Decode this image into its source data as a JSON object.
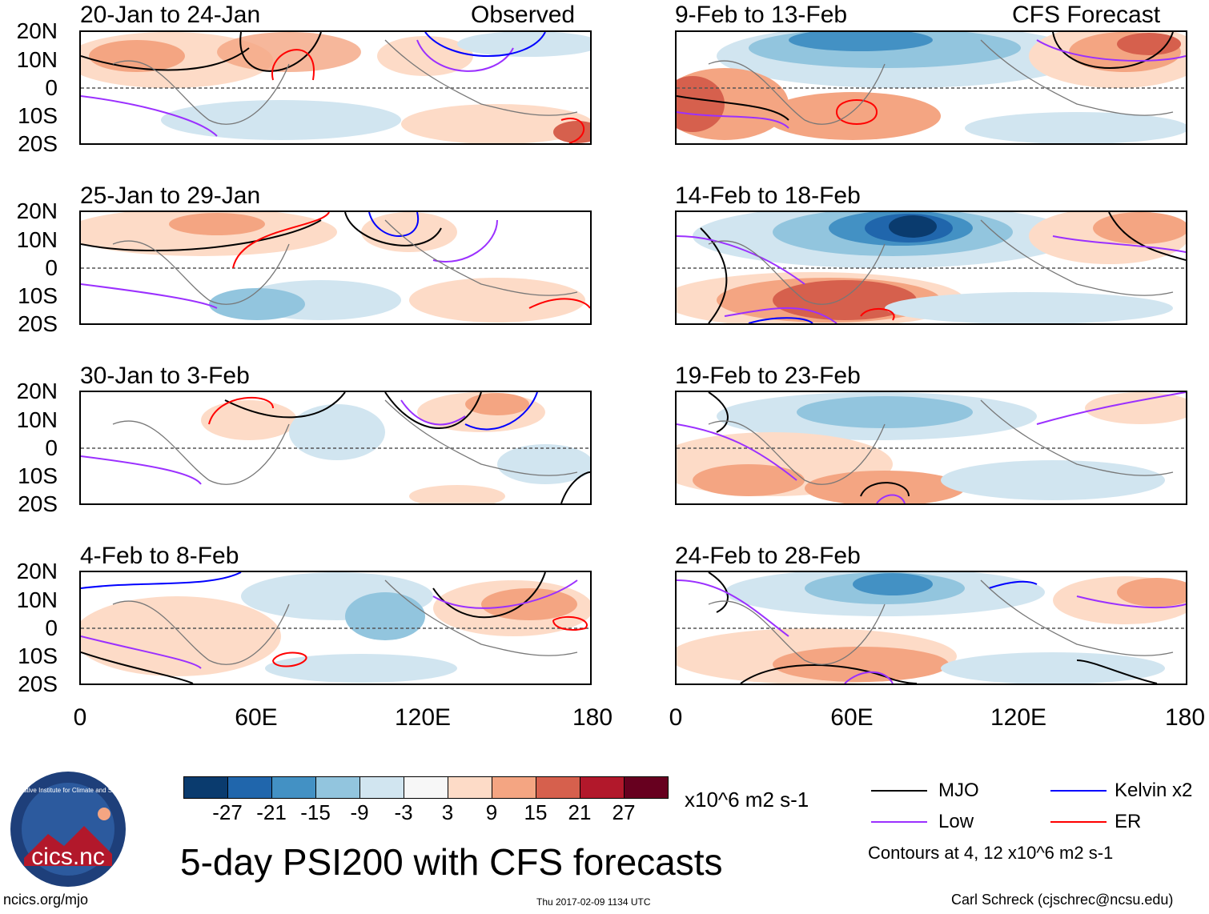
{
  "left_header": "Observed",
  "right_header": "CFS Forecast",
  "y_axis_labels": [
    "20N",
    "10N",
    "0",
    "10S",
    "20S"
  ],
  "x_axis_labels": [
    "0",
    "60E",
    "120E",
    "180"
  ],
  "observed_panels": [
    {
      "title": "20-Jan to 24-Jan"
    },
    {
      "title": "25-Jan to 29-Jan"
    },
    {
      "title": "30-Jan to 3-Feb"
    },
    {
      "title": "4-Feb to 8-Feb"
    }
  ],
  "forecast_panels": [
    {
      "title": "9-Feb to 13-Feb"
    },
    {
      "title": "14-Feb to 18-Feb"
    },
    {
      "title": "19-Feb to 23-Feb"
    },
    {
      "title": "24-Feb to 28-Feb"
    }
  ],
  "colorbar": {
    "ticks": [
      "-27",
      "-21",
      "-15",
      "-9",
      "-3",
      "3",
      "9",
      "15",
      "21",
      "27"
    ],
    "colors": [
      "#0a3b6e",
      "#2066ac",
      "#4391c4",
      "#92c5de",
      "#d1e5f0",
      "#f7f7f7",
      "#fddbc7",
      "#f4a582",
      "#d6604d",
      "#b2182b",
      "#67001f"
    ],
    "units": "x10^6 m2 s-1"
  },
  "legend": {
    "items": [
      {
        "label": "MJO",
        "color": "#000000"
      },
      {
        "label": "Kelvin x2",
        "color": "#0000ff"
      },
      {
        "label": "Low",
        "color": "#9b30ff"
      },
      {
        "label": "ER",
        "color": "#ff0000"
      }
    ],
    "note": "Contours at 4, 12 x10^6 m2 s-1"
  },
  "logo": {
    "text": "cics.nc",
    "ring_text": "Cooperative Institute for Climate and Satellites"
  },
  "main_title": "5-day PSI200 with CFS forecasts",
  "footer": {
    "left": "ncics.org/mjo",
    "center": "Thu 2017-02-09 1134 UTC",
    "right": "Carl Schreck (cjschrec@ncsu.edu)"
  }
}
